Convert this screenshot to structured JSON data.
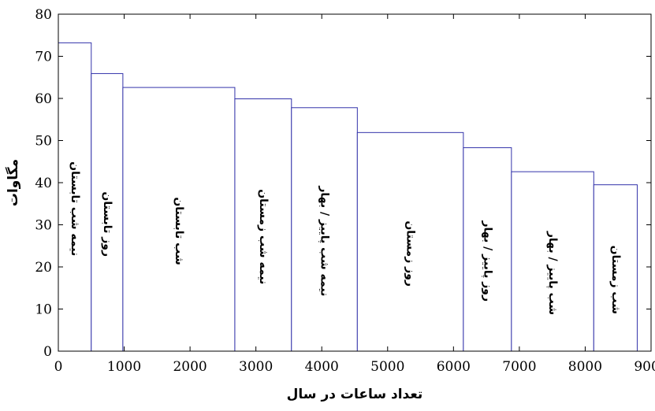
{
  "chart_data": {
    "type": "bar",
    "xlabel": "تعداد ساعات در سال",
    "ylabel": "مگاوات",
    "xlim": [
      0,
      9000
    ],
    "ylim": [
      0,
      80
    ],
    "xticks": [
      "0",
      "1000",
      "2000",
      "3000",
      "4000",
      "5000",
      "6000",
      "7000",
      "8000",
      "9000"
    ],
    "yticks": [
      "0",
      "10",
      "20",
      "30",
      "40",
      "50",
      "60",
      "70",
      "80"
    ],
    "grid": false,
    "bar_color": "#3333aa",
    "series": [
      {
        "label": "نیمه شب تابستان",
        "x_start": 0,
        "x_end": 500,
        "value": 73.2
      },
      {
        "label": "روز تابستان",
        "x_start": 500,
        "x_end": 980,
        "value": 65.9
      },
      {
        "label": "شب تابستان",
        "x_start": 980,
        "x_end": 2680,
        "value": 62.6
      },
      {
        "label": "نیمه شب زمستان",
        "x_start": 2680,
        "x_end": 3540,
        "value": 59.9
      },
      {
        "label": "نیمه شب پاییز / بهار",
        "x_start": 3540,
        "x_end": 4540,
        "value": 57.8
      },
      {
        "label": "روز زمستان",
        "x_start": 4540,
        "x_end": 6150,
        "value": 51.9
      },
      {
        "label": "روز پاییز / بهار",
        "x_start": 6150,
        "x_end": 6880,
        "value": 48.3
      },
      {
        "label": "شب پاییز / بهار",
        "x_start": 6880,
        "x_end": 8130,
        "value": 42.6
      },
      {
        "label": "شب زمستان",
        "x_start": 8130,
        "x_end": 8790,
        "value": 39.5
      }
    ]
  }
}
